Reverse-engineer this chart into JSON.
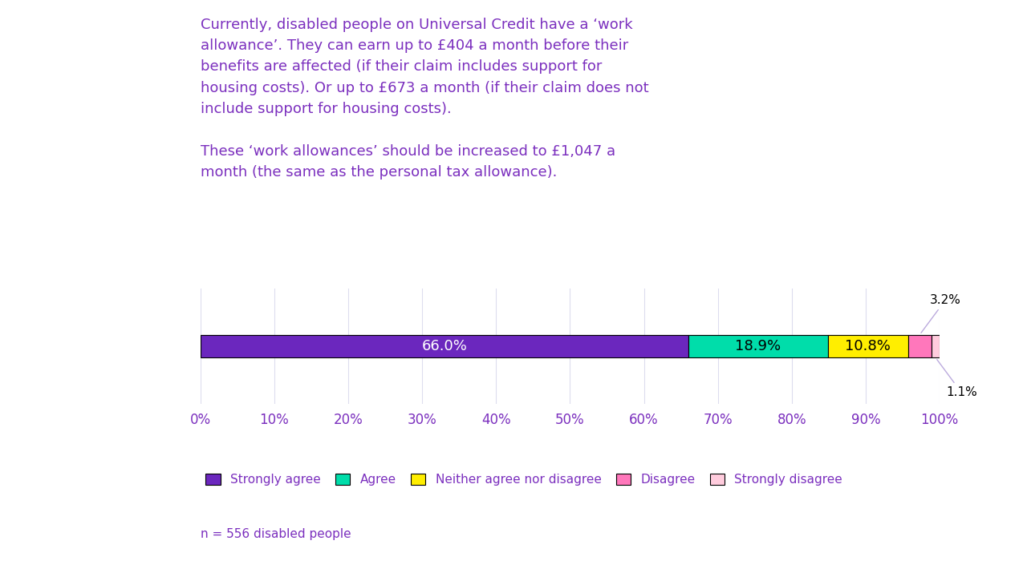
{
  "title_text": "Currently, disabled people on Universal Credit have a ‘work\nallowance’. They can earn up to £404 a month before their\nbenefits are affected (if their claim includes support for\nhousing costs). Or up to £673 a month (if their claim does not\ninclude support for housing costs).\n\nThese ‘work allowances’ should be increased to £1,047 a\nmonth (the same as the personal tax allowance).",
  "values": [
    66.0,
    18.9,
    10.8,
    3.2,
    1.1
  ],
  "labels": [
    "Strongly agree",
    "Agree",
    "Neither agree nor disagree",
    "Disagree",
    "Strongly disagree"
  ],
  "bar_colors": [
    "#6B27BE",
    "#00DDAA",
    "#FFEE00",
    "#FF77BB",
    "#FFCCDD"
  ],
  "text_color": "#7B2FBE",
  "n_label": "n = 556 disabled people",
  "xtick_labels": [
    "0%",
    "10%",
    "20%",
    "30%",
    "40%",
    "50%",
    "60%",
    "70%",
    "80%",
    "90%",
    "100%"
  ],
  "xtick_values": [
    0,
    10,
    20,
    30,
    40,
    50,
    60,
    70,
    80,
    90,
    100
  ],
  "background_color": "#FFFFFF"
}
